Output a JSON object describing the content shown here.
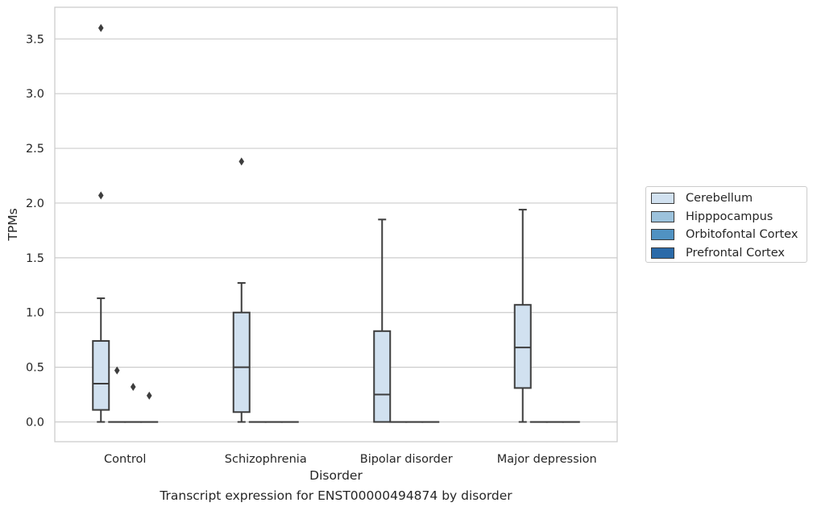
{
  "chart_data": {
    "type": "box",
    "xlabel": "Disorder",
    "ylabel": "TPMs",
    "ylim": [
      -0.18,
      3.78
    ],
    "yticks": [
      "0.0",
      "0.5",
      "1.0",
      "1.5",
      "2.0",
      "2.5",
      "3.0",
      "3.5"
    ],
    "ytick_values": [
      0.0,
      0.5,
      1.0,
      1.5,
      2.0,
      2.5,
      3.0,
      3.5
    ],
    "grid": true,
    "legend_position": "right",
    "categories": [
      "Control",
      "Schizophrenia",
      "Bipolar disorder",
      "Major depression"
    ],
    "series": [
      {
        "name": "Cerebellum",
        "color": "#d1e1f0",
        "boxes": [
          {
            "whislo": 0.0,
            "q1": 0.11,
            "med": 0.35,
            "q3": 0.74,
            "whishi": 1.13,
            "fliers": [
              3.6,
              2.07
            ]
          },
          {
            "whislo": 0.0,
            "q1": 0.09,
            "med": 0.5,
            "q3": 1.0,
            "whishi": 1.27,
            "fliers": [
              2.38
            ]
          },
          {
            "whislo": 0.0,
            "q1": 0.0,
            "med": 0.25,
            "q3": 0.83,
            "whishi": 1.85,
            "fliers": []
          },
          {
            "whislo": 0.0,
            "q1": 0.31,
            "med": 0.68,
            "q3": 1.07,
            "whishi": 1.94,
            "fliers": []
          }
        ]
      },
      {
        "name": "Hipppocampus",
        "color": "#9cc2dc",
        "boxes": [
          {
            "whislo": 0.0,
            "q1": 0.0,
            "med": 0.0,
            "q3": 0.0,
            "whishi": 0.0,
            "fliers": [
              0.47
            ]
          },
          {
            "whislo": 0.0,
            "q1": 0.0,
            "med": 0.0,
            "q3": 0.0,
            "whishi": 0.0,
            "fliers": []
          },
          {
            "whislo": 0.0,
            "q1": 0.0,
            "med": 0.0,
            "q3": 0.0,
            "whishi": 0.0,
            "fliers": []
          },
          {
            "whislo": 0.0,
            "q1": 0.0,
            "med": 0.0,
            "q3": 0.0,
            "whishi": 0.0,
            "fliers": []
          }
        ]
      },
      {
        "name": "Orbitofontal Cortex",
        "color": "#5092c2",
        "boxes": [
          {
            "whislo": 0.0,
            "q1": 0.0,
            "med": 0.0,
            "q3": 0.0,
            "whishi": 0.0,
            "fliers": [
              0.32
            ]
          },
          {
            "whislo": 0.0,
            "q1": 0.0,
            "med": 0.0,
            "q3": 0.0,
            "whishi": 0.0,
            "fliers": []
          },
          {
            "whislo": 0.0,
            "q1": 0.0,
            "med": 0.0,
            "q3": 0.0,
            "whishi": 0.0,
            "fliers": []
          },
          {
            "whislo": 0.0,
            "q1": 0.0,
            "med": 0.0,
            "q3": 0.0,
            "whishi": 0.0,
            "fliers": []
          }
        ]
      },
      {
        "name": "Prefrontal Cortex",
        "color": "#2b6aa8",
        "boxes": [
          {
            "whislo": 0.0,
            "q1": 0.0,
            "med": 0.0,
            "q3": 0.0,
            "whishi": 0.0,
            "fliers": [
              0.24
            ]
          },
          {
            "whislo": 0.0,
            "q1": 0.0,
            "med": 0.0,
            "q3": 0.0,
            "whishi": 0.0,
            "fliers": []
          },
          {
            "whislo": 0.0,
            "q1": 0.0,
            "med": 0.0,
            "q3": 0.0,
            "whishi": 0.0,
            "fliers": []
          },
          {
            "whislo": 0.0,
            "q1": 0.0,
            "med": 0.0,
            "q3": 0.0,
            "whishi": 0.0,
            "fliers": []
          }
        ]
      }
    ]
  },
  "caption": "Transcript expression for ENST00000494874 by disorder"
}
